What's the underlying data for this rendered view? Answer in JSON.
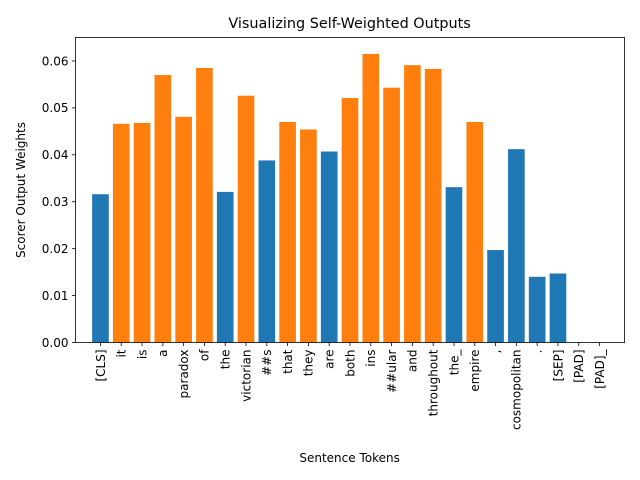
{
  "chart_data": {
    "type": "bar",
    "title": "Visualizing Self-Weighted Outputs",
    "xlabel": "Sentence Tokens",
    "ylabel": "Scorer Output Weights",
    "ylim": [
      0,
      0.065
    ],
    "yticks": [
      0.0,
      0.01,
      0.02,
      0.03,
      0.04,
      0.05,
      0.06
    ],
    "ytick_labels": [
      "0.00",
      "0.01",
      "0.02",
      "0.03",
      "0.04",
      "0.05",
      "0.06"
    ],
    "grid": false,
    "legend": "none",
    "colors": {
      "blue": "#1f77b4",
      "orange": "#ff7f0e"
    },
    "categories": [
      "[CLS]",
      "it",
      "is",
      "a",
      "paradox",
      "of",
      "the",
      "victorian",
      "##s",
      "that",
      "they",
      "are",
      "both",
      "ins",
      "##ular",
      "and",
      "throughout",
      "the_",
      "empire",
      ",",
      "cosmopolitan",
      ".",
      "[SEP]",
      "[PAD]",
      "[PAD]_"
    ],
    "values": [
      0.0316,
      0.0466,
      0.0468,
      0.057,
      0.0481,
      0.0585,
      0.0321,
      0.0526,
      0.0388,
      0.047,
      0.0454,
      0.0407,
      0.0521,
      0.0615,
      0.0543,
      0.0591,
      0.0583,
      0.0331,
      0.047,
      0.0197,
      0.0412,
      0.014,
      0.0147,
      0.0,
      0.0
    ],
    "bar_colors": [
      "blue",
      "orange",
      "orange",
      "orange",
      "orange",
      "orange",
      "blue",
      "orange",
      "blue",
      "orange",
      "orange",
      "blue",
      "orange",
      "orange",
      "orange",
      "orange",
      "orange",
      "blue",
      "orange",
      "blue",
      "blue",
      "blue",
      "blue",
      "blue",
      "blue"
    ]
  }
}
